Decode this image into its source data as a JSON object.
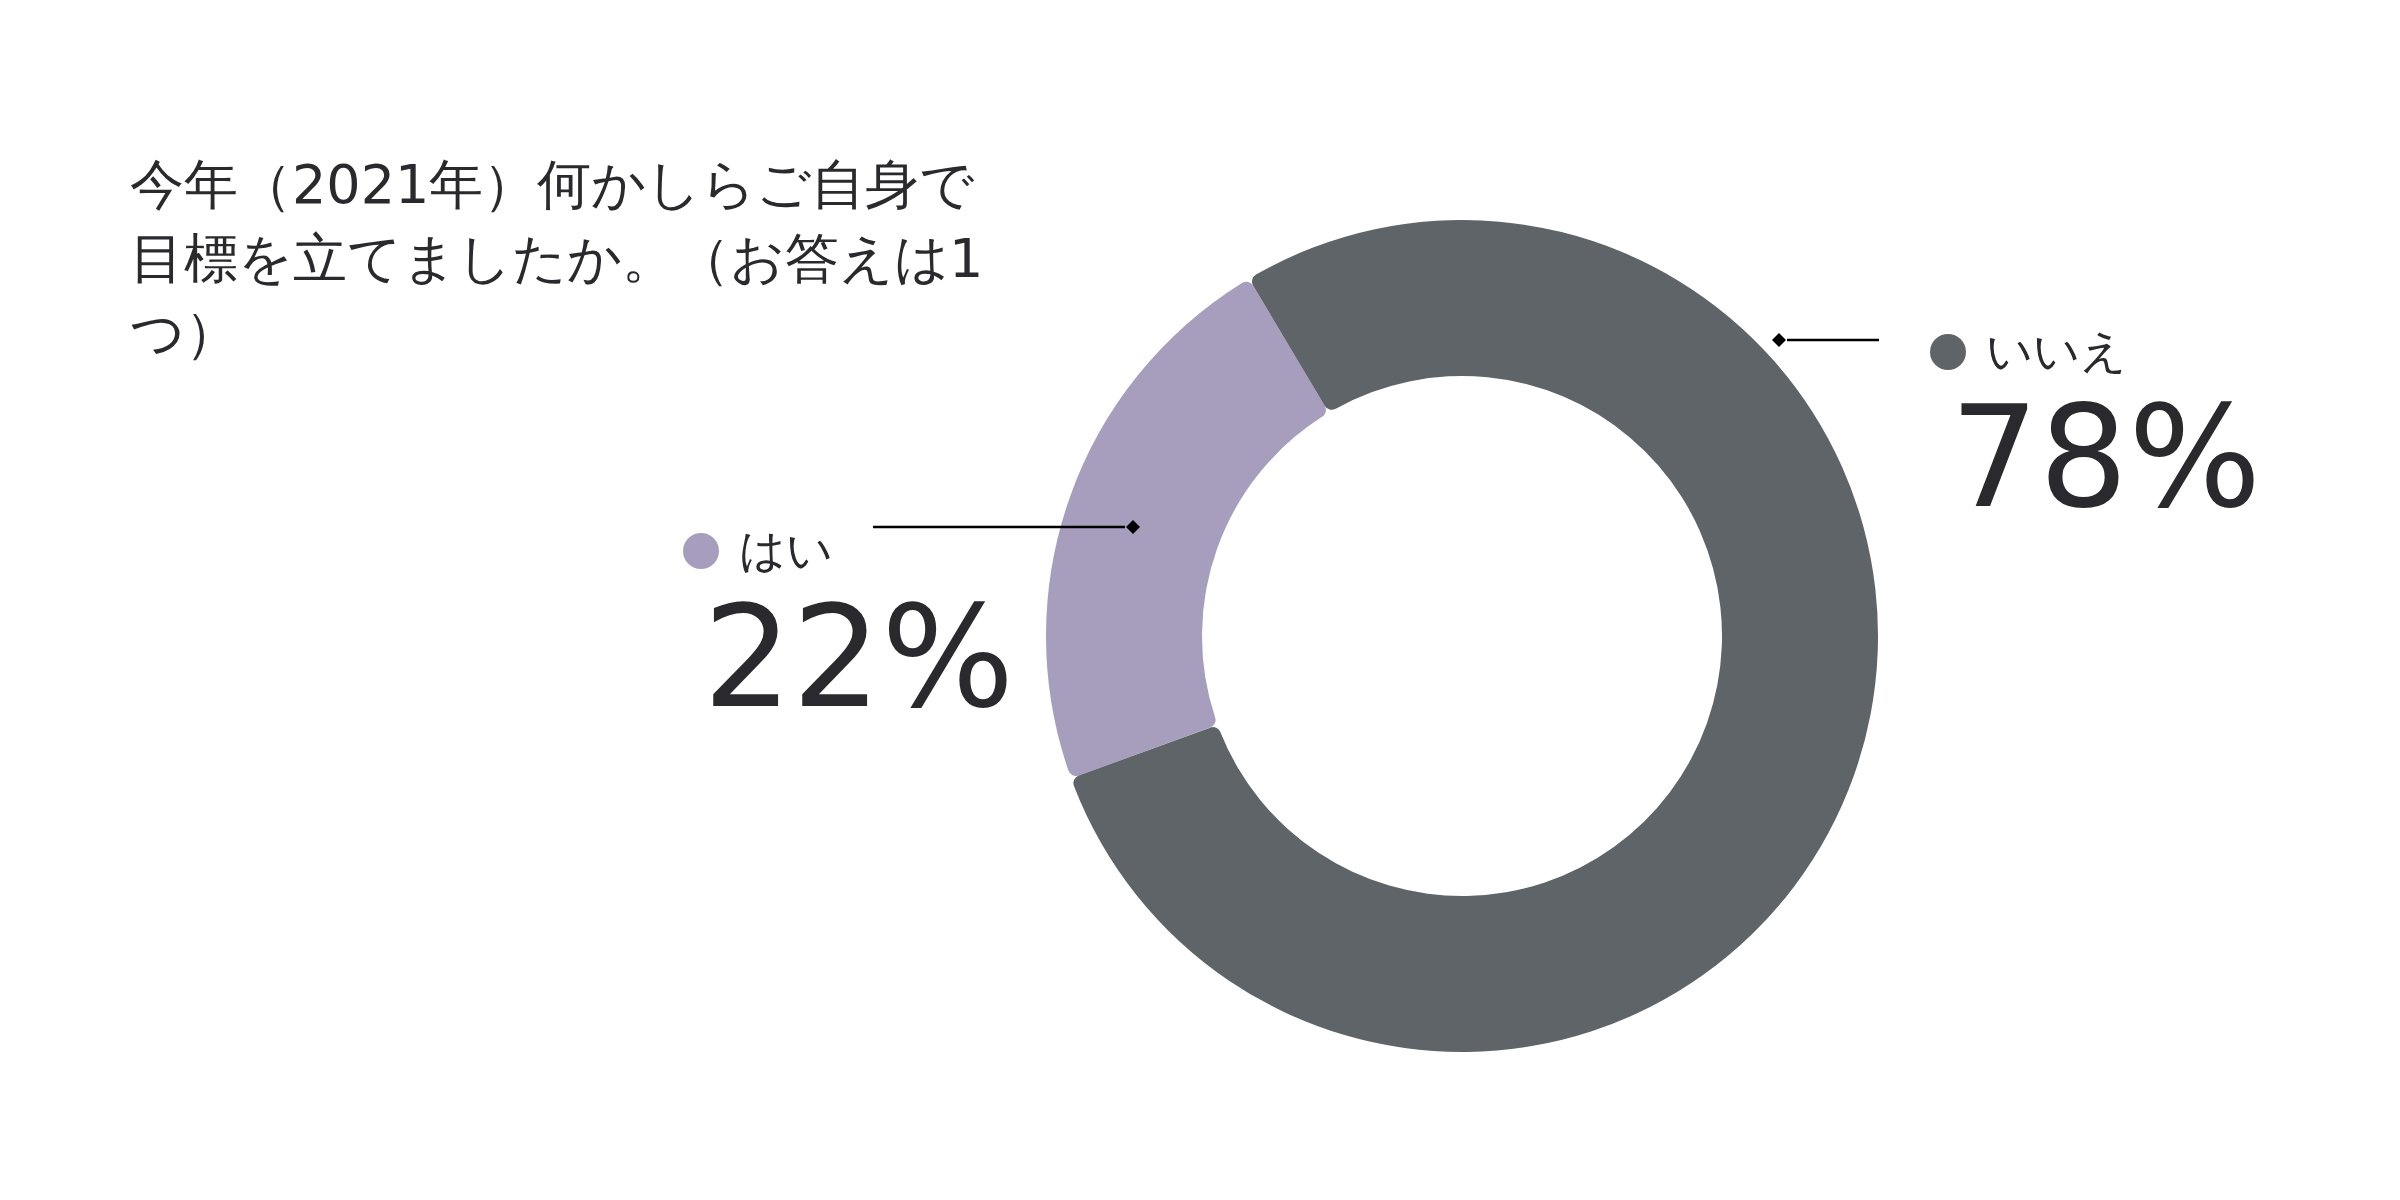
{
  "chart_data": {
    "type": "donut",
    "title": "今年（2021年）何かしらご自身で目標を立てましたか。（お答えは1つ）",
    "categories": [
      "はい",
      "いいえ"
    ],
    "values": [
      22,
      78
    ],
    "colors": [
      "#a79ebe",
      "#5f6469"
    ],
    "value_labels": [
      "22%",
      "78%"
    ],
    "legend": "top"
  }
}
